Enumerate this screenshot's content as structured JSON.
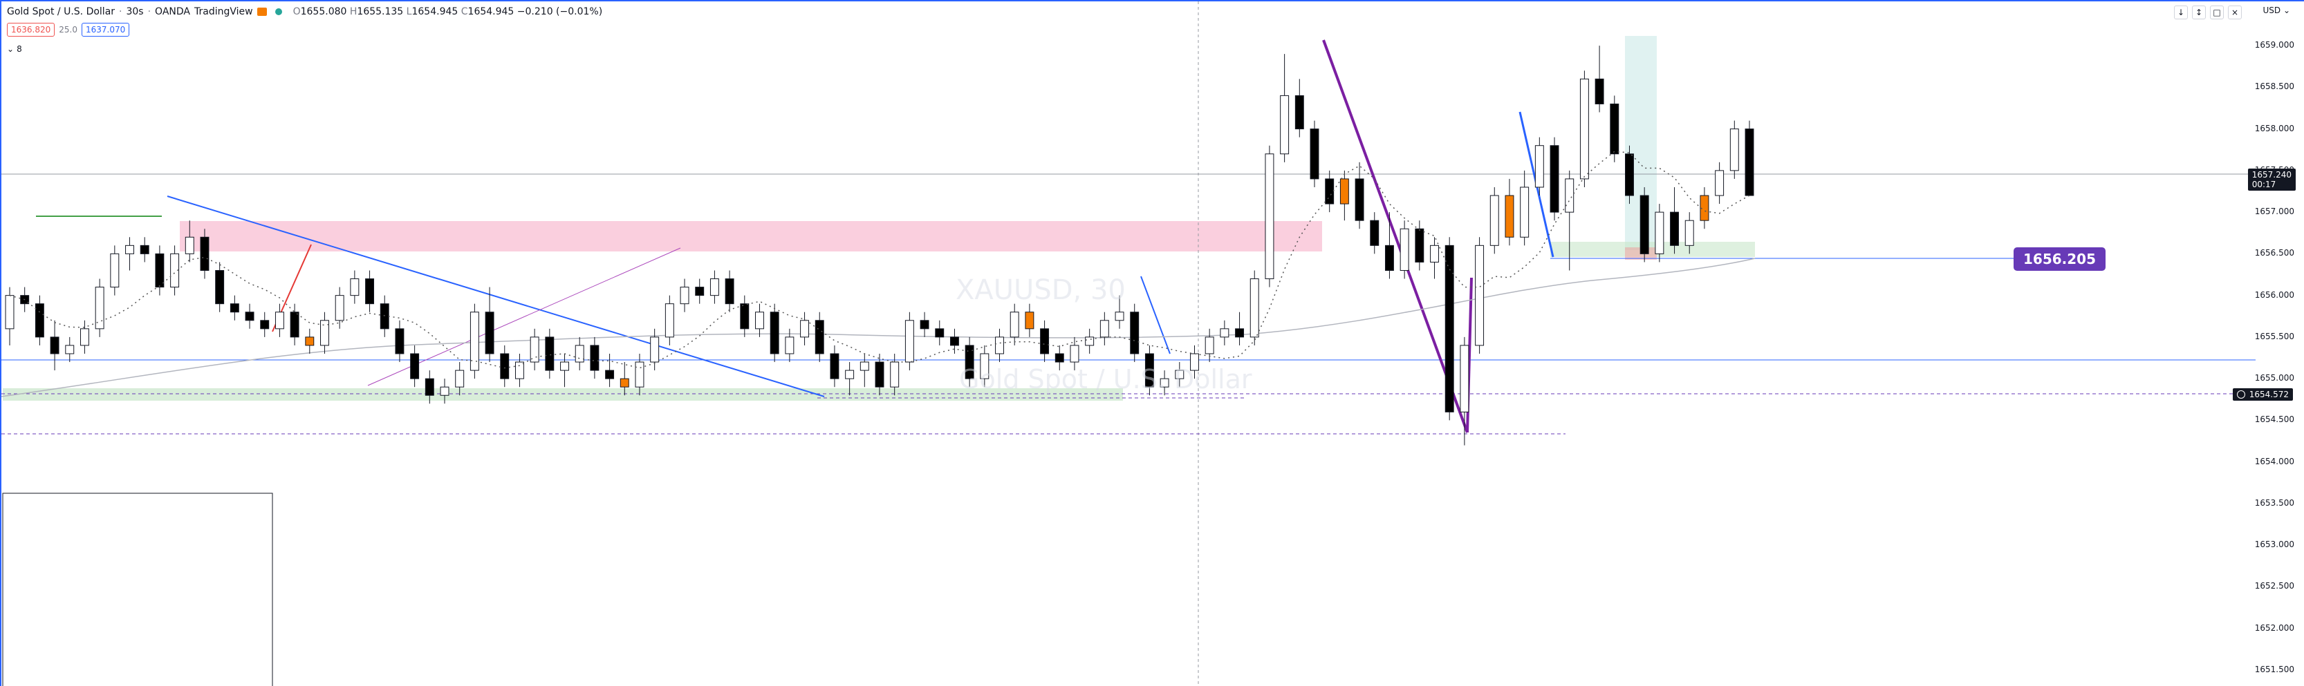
{
  "legend": {
    "symbol": "Gold Spot / U.S. Dollar",
    "interval": "30s",
    "broker": "OANDA",
    "platform": "TradingView",
    "ohlc": {
      "open": "1655.080",
      "high": "1655.135",
      "low": "1654.945",
      "close": "1654.945",
      "change": "−0.210 (−0.01%)"
    },
    "bid": "1636.820",
    "spread": "25.0",
    "ask": "1637.070",
    "indicators_count": "8",
    "status_color": "#26a69a"
  },
  "currency": "USD",
  "window_buttons": [
    "↓",
    "↕",
    "□",
    "×"
  ],
  "price_axis": [
    "1659.000",
    "1658.500",
    "1658.000",
    "1657.500",
    "1657.000",
    "1656.500",
    "1656.000",
    "1655.500",
    "1655.000",
    "1654.500",
    "1654.000",
    "1653.500",
    "1653.000",
    "1652.500",
    "1652.000",
    "1651.500"
  ],
  "last_price": {
    "value": "1657.240",
    "countdown": "00:17",
    "color": "#131722"
  },
  "alert_price": "1654.572",
  "annotation_price": "1656.205",
  "annotation_color": "#673ab7",
  "watermark_main": "XAUUSD, 30",
  "watermark_sub": "Gold Spot / U.S. Dollar",
  "colors": {
    "up": "#ffffff",
    "down": "#000000",
    "highlight": "#f57c00",
    "ma_slow": "#b2b5be",
    "ma_fast": "#555555",
    "trendline": "#2962ff",
    "purple": "#7b1fa2",
    "red": "#e53935"
  },
  "chart_data": {
    "type": "candlestick",
    "y_range": [
      1651.4,
      1659.2
    ],
    "candles": [
      [
        1655.6,
        1656.1,
        1655.4,
        1656.0
      ],
      [
        1656.0,
        1656.1,
        1655.8,
        1655.9
      ],
      [
        1655.9,
        1656.0,
        1655.4,
        1655.5
      ],
      [
        1655.5,
        1655.7,
        1655.1,
        1655.3
      ],
      [
        1655.3,
        1655.5,
        1655.2,
        1655.4
      ],
      [
        1655.4,
        1655.7,
        1655.3,
        1655.6
      ],
      [
        1655.6,
        1656.2,
        1655.5,
        1656.1
      ],
      [
        1656.1,
        1656.6,
        1656.0,
        1656.5
      ],
      [
        1656.5,
        1656.7,
        1656.3,
        1656.6
      ],
      [
        1656.6,
        1656.7,
        1656.4,
        1656.5
      ],
      [
        1656.5,
        1656.6,
        1656.0,
        1656.1
      ],
      [
        1656.1,
        1656.6,
        1656.0,
        1656.5
      ],
      [
        1656.5,
        1656.9,
        1656.4,
        1656.7
      ],
      [
        1656.7,
        1656.8,
        1656.2,
        1656.3
      ],
      [
        1656.3,
        1656.4,
        1655.8,
        1655.9
      ],
      [
        1655.9,
        1656.0,
        1655.7,
        1655.8
      ],
      [
        1655.8,
        1655.9,
        1655.6,
        1655.7
      ],
      [
        1655.7,
        1655.8,
        1655.5,
        1655.6
      ],
      [
        1655.6,
        1655.9,
        1655.5,
        1655.8
      ],
      [
        1655.8,
        1655.9,
        1655.4,
        1655.5
      ],
      [
        1655.5,
        1655.6,
        1655.3,
        1655.4
      ],
      [
        1655.4,
        1655.8,
        1655.3,
        1655.7
      ],
      [
        1655.7,
        1656.1,
        1655.6,
        1656.0
      ],
      [
        1656.0,
        1656.3,
        1655.9,
        1656.2
      ],
      [
        1656.2,
        1656.3,
        1655.8,
        1655.9
      ],
      [
        1655.9,
        1656.0,
        1655.5,
        1655.6
      ],
      [
        1655.6,
        1655.7,
        1655.2,
        1655.3
      ],
      [
        1655.3,
        1655.4,
        1654.9,
        1655.0
      ],
      [
        1655.0,
        1655.1,
        1654.7,
        1654.8
      ],
      [
        1654.8,
        1655.0,
        1654.7,
        1654.9
      ],
      [
        1654.9,
        1655.2,
        1654.8,
        1655.1
      ],
      [
        1655.1,
        1655.9,
        1655.0,
        1655.8
      ],
      [
        1655.8,
        1656.1,
        1655.2,
        1655.3
      ],
      [
        1655.3,
        1655.4,
        1654.9,
        1655.0
      ],
      [
        1655.0,
        1655.3,
        1654.9,
        1655.2
      ],
      [
        1655.2,
        1655.6,
        1655.1,
        1655.5
      ],
      [
        1655.5,
        1655.6,
        1655.0,
        1655.1
      ],
      [
        1655.1,
        1655.3,
        1654.9,
        1655.2
      ],
      [
        1655.2,
        1655.5,
        1655.1,
        1655.4
      ],
      [
        1655.4,
        1655.5,
        1655.0,
        1655.1
      ],
      [
        1655.1,
        1655.3,
        1654.9,
        1655.0
      ],
      [
        1655.0,
        1655.2,
        1654.8,
        1654.9
      ],
      [
        1654.9,
        1655.3,
        1654.8,
        1655.2
      ],
      [
        1655.2,
        1655.6,
        1655.1,
        1655.5
      ],
      [
        1655.5,
        1656.0,
        1655.4,
        1655.9
      ],
      [
        1655.9,
        1656.2,
        1655.8,
        1656.1
      ],
      [
        1656.1,
        1656.2,
        1655.9,
        1656.0
      ],
      [
        1656.0,
        1656.3,
        1655.9,
        1656.2
      ],
      [
        1656.2,
        1656.3,
        1655.8,
        1655.9
      ],
      [
        1655.9,
        1656.0,
        1655.5,
        1655.6
      ],
      [
        1655.6,
        1655.9,
        1655.5,
        1655.8
      ],
      [
        1655.8,
        1655.9,
        1655.2,
        1655.3
      ],
      [
        1655.3,
        1655.6,
        1655.2,
        1655.5
      ],
      [
        1655.5,
        1655.8,
        1655.4,
        1655.7
      ],
      [
        1655.7,
        1655.8,
        1655.2,
        1655.3
      ],
      [
        1655.3,
        1655.4,
        1654.9,
        1655.0
      ],
      [
        1655.0,
        1655.2,
        1654.8,
        1655.1
      ],
      [
        1655.1,
        1655.3,
        1654.9,
        1655.2
      ],
      [
        1655.2,
        1655.3,
        1654.8,
        1654.9
      ],
      [
        1654.9,
        1655.3,
        1654.8,
        1655.2
      ],
      [
        1655.2,
        1655.8,
        1655.1,
        1655.7
      ],
      [
        1655.7,
        1655.8,
        1655.5,
        1655.6
      ],
      [
        1655.6,
        1655.7,
        1655.4,
        1655.5
      ],
      [
        1655.5,
        1655.6,
        1655.3,
        1655.4
      ],
      [
        1655.4,
        1655.5,
        1654.9,
        1655.0
      ],
      [
        1655.0,
        1655.4,
        1654.9,
        1655.3
      ],
      [
        1655.3,
        1655.6,
        1655.2,
        1655.5
      ],
      [
        1655.5,
        1655.9,
        1655.4,
        1655.8
      ],
      [
        1655.8,
        1655.9,
        1655.5,
        1655.6
      ],
      [
        1655.6,
        1655.7,
        1655.2,
        1655.3
      ],
      [
        1655.3,
        1655.4,
        1655.1,
        1655.2
      ],
      [
        1655.2,
        1655.5,
        1655.1,
        1655.4
      ],
      [
        1655.4,
        1655.6,
        1655.3,
        1655.5
      ],
      [
        1655.5,
        1655.8,
        1655.4,
        1655.7
      ],
      [
        1655.7,
        1656.0,
        1655.6,
        1655.8
      ],
      [
        1655.8,
        1655.9,
        1655.2,
        1655.3
      ],
      [
        1655.3,
        1655.4,
        1654.8,
        1654.9
      ],
      [
        1654.9,
        1655.1,
        1654.8,
        1655.0
      ],
      [
        1655.0,
        1655.2,
        1654.9,
        1655.1
      ],
      [
        1655.1,
        1655.4,
        1655.0,
        1655.3
      ],
      [
        1655.3,
        1655.6,
        1655.2,
        1655.5
      ],
      [
        1655.5,
        1655.7,
        1655.4,
        1655.6
      ],
      [
        1655.6,
        1655.8,
        1655.4,
        1655.5
      ],
      [
        1655.5,
        1656.3,
        1655.4,
        1656.2
      ],
      [
        1656.2,
        1657.8,
        1656.1,
        1657.7
      ],
      [
        1657.7,
        1658.9,
        1657.6,
        1658.4
      ],
      [
        1658.4,
        1658.6,
        1657.9,
        1658.0
      ],
      [
        1658.0,
        1658.1,
        1657.3,
        1657.4
      ],
      [
        1657.4,
        1657.5,
        1657.0,
        1657.1
      ],
      [
        1657.1,
        1657.5,
        1656.9,
        1657.4
      ],
      [
        1657.4,
        1657.6,
        1656.8,
        1656.9
      ],
      [
        1656.9,
        1657.0,
        1656.5,
        1656.6
      ],
      [
        1656.6,
        1657.0,
        1656.2,
        1656.3
      ],
      [
        1656.3,
        1656.9,
        1656.2,
        1656.8
      ],
      [
        1656.8,
        1656.9,
        1656.3,
        1656.4
      ],
      [
        1656.4,
        1656.7,
        1656.2,
        1656.6
      ],
      [
        1656.6,
        1656.7,
        1654.5,
        1654.6
      ],
      [
        1654.6,
        1655.5,
        1654.2,
        1655.4
      ],
      [
        1655.4,
        1656.7,
        1655.3,
        1656.6
      ],
      [
        1656.6,
        1657.3,
        1656.5,
        1657.2
      ],
      [
        1657.2,
        1657.4,
        1656.6,
        1656.7
      ],
      [
        1656.7,
        1657.5,
        1656.6,
        1657.3
      ],
      [
        1657.3,
        1657.9,
        1657.2,
        1657.8
      ],
      [
        1657.8,
        1657.9,
        1656.9,
        1657.0
      ],
      [
        1657.0,
        1657.5,
        1656.3,
        1657.4
      ],
      [
        1657.4,
        1658.7,
        1657.3,
        1658.6
      ],
      [
        1658.6,
        1659.0,
        1658.2,
        1658.3
      ],
      [
        1658.3,
        1658.4,
        1657.6,
        1657.7
      ],
      [
        1657.7,
        1657.8,
        1657.1,
        1657.2
      ],
      [
        1657.2,
        1657.3,
        1656.4,
        1656.5
      ],
      [
        1656.5,
        1657.1,
        1656.4,
        1657.0
      ],
      [
        1657.0,
        1657.3,
        1656.5,
        1656.6
      ],
      [
        1656.6,
        1657.0,
        1656.5,
        1656.9
      ],
      [
        1656.9,
        1657.3,
        1656.8,
        1657.2
      ],
      [
        1657.2,
        1657.6,
        1657.1,
        1657.5
      ],
      [
        1657.5,
        1658.1,
        1657.4,
        1658.0
      ],
      [
        1658.0,
        1658.1,
        1657.2,
        1657.2
      ]
    ],
    "highlight_index": [
      20,
      41,
      68,
      89,
      100,
      113
    ]
  }
}
